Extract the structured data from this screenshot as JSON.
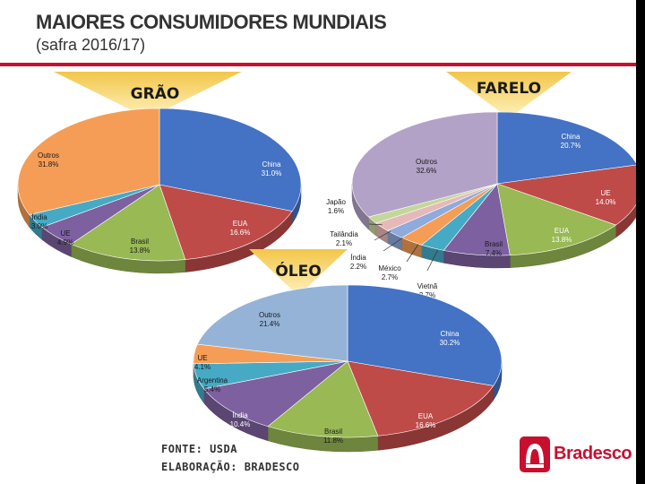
{
  "title": "MAIORES CONSUMIDORES MUNDIAIS",
  "subtitle": "(safra 2016/17)",
  "footer": {
    "source": "FONTE: USDA",
    "elaboration": "ELABORAÇÃO: BRADESCO"
  },
  "brand": {
    "name": "Bradesco",
    "color": "#c8102e"
  },
  "chart_data": [
    {
      "type": "pie",
      "title": "GRÃO",
      "slices": [
        {
          "label": "China",
          "value": 31.0,
          "display": "31.0%",
          "color": "#4472c4"
        },
        {
          "label": "EUA",
          "value": 16.6,
          "display": "16.6%",
          "color": "#be4b48"
        },
        {
          "label": "Brasil",
          "value": 13.8,
          "display": "13.8%",
          "color": "#98b954"
        },
        {
          "label": "UE",
          "value": 4.9,
          "display": "4.9%",
          "color": "#7d60a0"
        },
        {
          "label": "Índia",
          "value": 3.0,
          "display": "3.0%",
          "color": "#46aac5"
        },
        {
          "label": "Outros",
          "value": 31.8,
          "display": "31.8%",
          "color": "#f59d56"
        }
      ]
    },
    {
      "type": "pie",
      "title": "FARELO",
      "slices": [
        {
          "label": "China",
          "value": 20.7,
          "display": "20.7%",
          "color": "#4472c4"
        },
        {
          "label": "UE",
          "value": 14.0,
          "display": "14.0%",
          "color": "#be4b48"
        },
        {
          "label": "EUA",
          "value": 13.8,
          "display": "13.8%",
          "color": "#98b954"
        },
        {
          "label": "Brasil",
          "value": 7.4,
          "display": "7.4%",
          "color": "#7d60a0"
        },
        {
          "label": "Vietnã",
          "value": 2.7,
          "display": "2.7%",
          "color": "#46aac5"
        },
        {
          "label": "México",
          "value": 2.7,
          "display": "2.7%",
          "color": "#f59d56"
        },
        {
          "label": "Índia",
          "value": 2.2,
          "display": "2.2%",
          "color": "#8faadc"
        },
        {
          "label": "Tailândia",
          "value": 2.1,
          "display": "2.1%",
          "color": "#e6b9b8"
        },
        {
          "label": "Japão",
          "value": 1.6,
          "display": "1.6%",
          "color": "#c4d79b"
        },
        {
          "label": "Outros",
          "value": 32.6,
          "display": "32.6%",
          "color": "#b3a2c7"
        }
      ]
    },
    {
      "type": "pie",
      "title": "ÓLEO",
      "slices": [
        {
          "label": "China",
          "value": 30.2,
          "display": "30.2%",
          "color": "#4472c4"
        },
        {
          "label": "EUA",
          "value": 16.6,
          "display": "16.6%",
          "color": "#be4b48"
        },
        {
          "label": "Brasil",
          "value": 11.8,
          "display": "11.8%",
          "color": "#98b954"
        },
        {
          "label": "Índia",
          "value": 10.4,
          "display": "10.4%",
          "color": "#7d60a0"
        },
        {
          "label": "Argentina",
          "value": 5.4,
          "display": "5.4%",
          "color": "#46aac5"
        },
        {
          "label": "UE",
          "value": 4.1,
          "display": "4.1%",
          "color": "#f59d56"
        },
        {
          "label": "Outros",
          "value": 21.4,
          "display": "21.4%",
          "color": "#95b3d7"
        }
      ]
    }
  ]
}
